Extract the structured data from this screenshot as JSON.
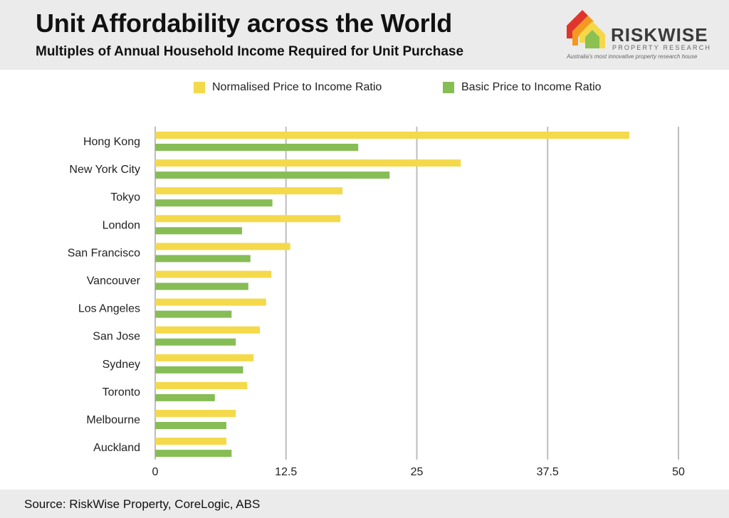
{
  "header": {
    "title": "Unit Affordability across the World",
    "subtitle": "Multiples of Annual Household Income Required for Unit Purchase"
  },
  "logo": {
    "name": "RISKWISE",
    "sub": "PROPERTY RESEARCH",
    "tagline": "Australia's most innovative property research house",
    "colors": {
      "red": "#e0352b",
      "orange": "#f29a1f",
      "yellow": "#f4d84a",
      "green": "#8cc152"
    }
  },
  "colors": {
    "normalised": "#f4d94b",
    "basic": "#86bd55",
    "grid": "#bdbdbd",
    "header_bg": "#ebebeb"
  },
  "footer": {
    "source": "Source: RiskWise Property, CoreLogic, ABS"
  },
  "chart_data": {
    "type": "bar",
    "orientation": "horizontal",
    "title": "Unit Affordability across the World",
    "subtitle": "Multiples of Annual Household Income Required for Unit Purchase",
    "categories": [
      "Hong Kong",
      "New York City",
      "Tokyo",
      "London",
      "San Francisco",
      "Vancouver",
      "Los Angeles",
      "San Jose",
      "Sydney",
      "Toronto",
      "Melbourne",
      "Auckland"
    ],
    "series": [
      {
        "name": "Normalised Price to Income Ratio",
        "values": [
          45.3,
          29.2,
          17.9,
          17.7,
          12.9,
          11.1,
          10.6,
          10.0,
          9.4,
          8.8,
          7.7,
          6.8
        ]
      },
      {
        "name": "Basic Price to Income Ratio",
        "values": [
          19.4,
          22.4,
          11.2,
          8.3,
          9.1,
          8.9,
          7.3,
          7.7,
          8.4,
          5.7,
          6.8,
          7.3
        ]
      }
    ],
    "xlim": [
      0,
      50
    ],
    "xticks": [
      "0",
      "12.5",
      "25",
      "37.5",
      "50"
    ],
    "grid": true,
    "legend": "top"
  }
}
